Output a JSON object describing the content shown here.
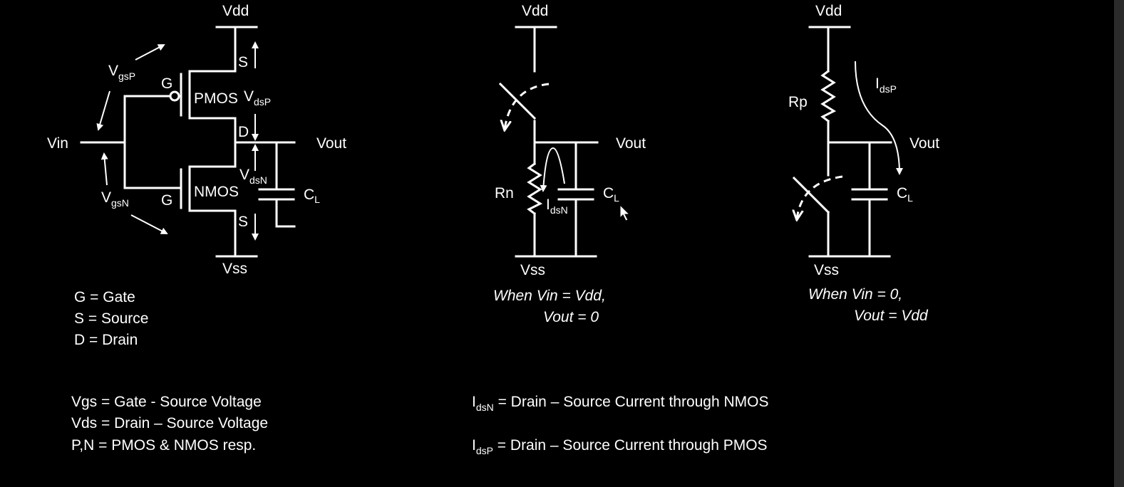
{
  "circuit1": {
    "vdd": "Vdd",
    "vss": "Vss",
    "vin": "Vin",
    "vout": "Vout",
    "vgsp_main": "V",
    "vgsp_sub": "gsP",
    "vgsn_main": "V",
    "vgsn_sub": "gsN",
    "vdsp_main": "V",
    "vdsp_sub": "dsP",
    "vdsn_main": "V",
    "vdsn_sub": "dsN",
    "gate_p": "G",
    "gate_n": "G",
    "source_p": "S",
    "source_n": "S",
    "drain": "D",
    "pmos": "PMOS",
    "nmos": "NMOS",
    "cl_main": "C",
    "cl_sub": "L"
  },
  "circuit2": {
    "vdd": "Vdd",
    "vss": "Vss",
    "vout": "Vout",
    "rn": "Rn",
    "idsn_main": "I",
    "idsn_sub": "dsN",
    "cl_main": "C",
    "cl_sub": "L",
    "caption_line1": "When Vin = Vdd,",
    "caption_line2": "Vout = 0"
  },
  "circuit3": {
    "vdd": "Vdd",
    "vss": "Vss",
    "vout": "Vout",
    "rp": "Rp",
    "idsp_main": "I",
    "idsp_sub": "dsP",
    "cl_main": "C",
    "cl_sub": "L",
    "caption_line1": "When Vin = 0,",
    "caption_line2": "Vout = Vdd"
  },
  "legend": {
    "g": "G = Gate",
    "s": "S = Source",
    "d": "D = Drain",
    "vgs": "Vgs = Gate  - Source Voltage",
    "vds": "Vds = Drain – Source Voltage",
    "pn": "P,N = PMOS & NMOS resp.",
    "idsn_main": "I",
    "idsn_sub": "dsN",
    "idsn_text": " = Drain – Source Current through NMOS",
    "idsp_main": "I",
    "idsp_sub": "dsP",
    "idsp_text": " = Drain – Source Current through PMOS"
  },
  "colors": {
    "background": "#000000",
    "foreground": "#ffffff"
  },
  "icons": [
    "mouse-cursor-icon"
  ]
}
